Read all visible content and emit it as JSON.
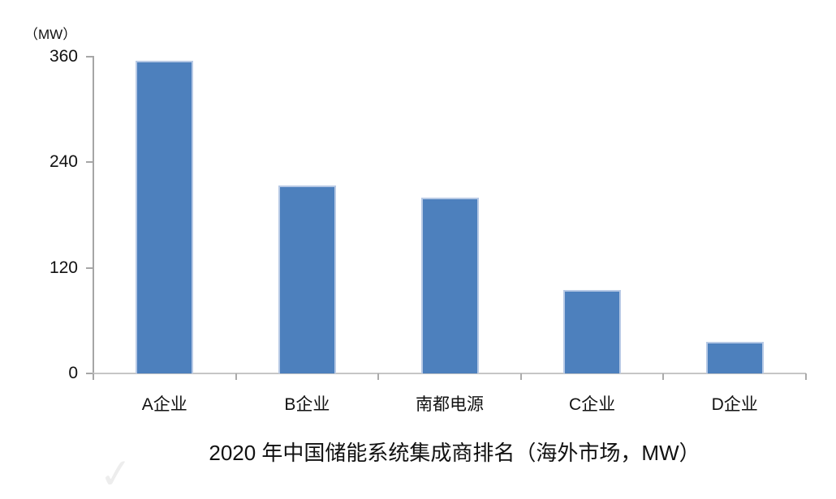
{
  "chart": {
    "unit_label": "（MW）",
    "title": "2020 年中国储能系统集成商排名（海外市场，MW）"
  },
  "chart_data": {
    "type": "bar",
    "categories": [
      "A企业",
      "B企业",
      "南都电源",
      "C企业",
      "D企业"
    ],
    "values": [
      355,
      214,
      200,
      95,
      36
    ],
    "title": "2020 年中国储能系统集成商排名（海外市场，MW）",
    "xlabel": "",
    "ylabel": "（MW）",
    "ylim": [
      0,
      360
    ],
    "yticks": [
      0,
      120,
      240,
      360
    ],
    "grid": false,
    "legend": false,
    "title_position": "bottom",
    "colors": {
      "bar_fill": "#4d80bd",
      "bar_border": "#b7c9e5",
      "y_axis": "#a6a6a6",
      "x_axis": "#c6c6c6",
      "text": "#111111"
    }
  },
  "watermark": {
    "glyph": "✓"
  }
}
